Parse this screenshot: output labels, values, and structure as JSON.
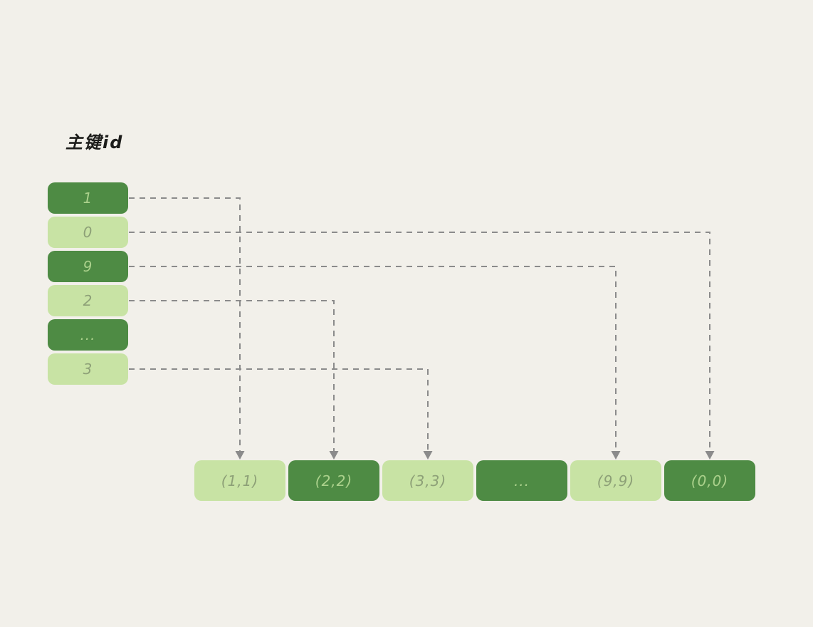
{
  "diagram": {
    "title": "主键id",
    "left_column": {
      "boxes": [
        {
          "id": "pk-1",
          "label": "1",
          "variant": "dark"
        },
        {
          "id": "pk-0",
          "label": "0",
          "variant": "light"
        },
        {
          "id": "pk-9",
          "label": "9",
          "variant": "dark"
        },
        {
          "id": "pk-2",
          "label": "2",
          "variant": "light"
        },
        {
          "id": "pk-ellipsis",
          "label": "...",
          "variant": "dark"
        },
        {
          "id": "pk-3",
          "label": "3",
          "variant": "light"
        }
      ]
    },
    "bottom_row": {
      "boxes": [
        {
          "id": "pair-1",
          "label": "(1,1)",
          "variant": "light"
        },
        {
          "id": "pair-2",
          "label": "(2,2)",
          "variant": "dark"
        },
        {
          "id": "pair-3",
          "label": "(3,3)",
          "variant": "light"
        },
        {
          "id": "pair-ellipsis",
          "label": "...",
          "variant": "dark"
        },
        {
          "id": "pair-9",
          "label": "(9,9)",
          "variant": "light"
        },
        {
          "id": "pair-0",
          "label": "(0,0)",
          "variant": "dark"
        }
      ]
    },
    "connections": [
      {
        "from": "pk-1",
        "to": "pair-1"
      },
      {
        "from": "pk-0",
        "to": "pair-0"
      },
      {
        "from": "pk-9",
        "to": "pair-9"
      },
      {
        "from": "pk-2",
        "to": "pair-2"
      },
      {
        "from": "pk-3",
        "to": "pair-3"
      }
    ],
    "colors": {
      "background": "#f2f0ea",
      "box_dark": "#4e8b44",
      "box_light": "#c8e3a4",
      "text_on_dark": "#abd18c",
      "text_on_light": "#8da077",
      "connector": "#8b8b8b",
      "title_text": "#1d1d1b"
    }
  }
}
